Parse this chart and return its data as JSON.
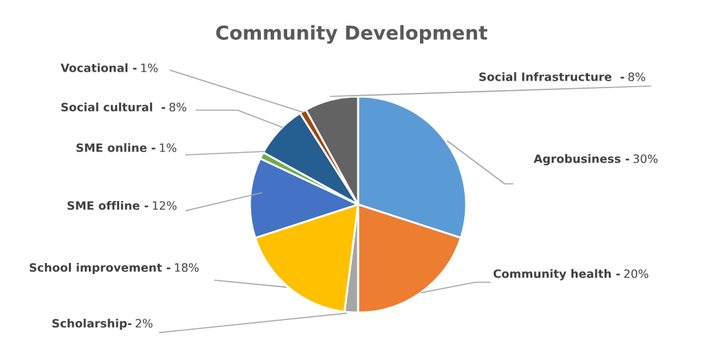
{
  "chart_data": {
    "type": "pie",
    "title": "Community Development",
    "categories": [
      "Agrobusiness -",
      "Community health -",
      "Scholarship-",
      "School improvement -",
      "SME offline -",
      "SME online -",
      "Social cultural  -",
      "Vocational -",
      "Social Infrastructure  -"
    ],
    "values": [
      30,
      20,
      2,
      18,
      12,
      1,
      8,
      1,
      8
    ],
    "colors": [
      "#5b9bd5",
      "#ed7d31",
      "#a5a5a5",
      "#ffc000",
      "#4472c4",
      "#70ad47",
      "#255e91",
      "#9e480e",
      "#636363"
    ],
    "value_labels": [
      "30%",
      "20%",
      "2%",
      "18%",
      "12%",
      "1%",
      "8%",
      "1%",
      "8%"
    ],
    "legend": false
  }
}
